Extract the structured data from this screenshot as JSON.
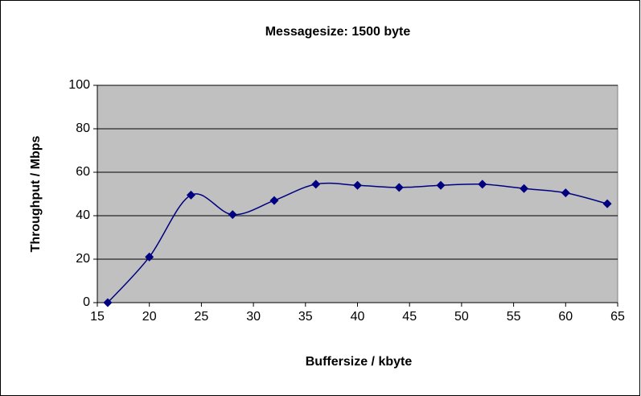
{
  "chart_data": {
    "type": "line",
    "title": "Messagesize: 1500 byte",
    "x_label": "Buffersize / kbyte",
    "y_label": "Throughput / Mbps",
    "x": [
      16,
      20,
      24,
      28,
      32,
      36,
      40,
      44,
      48,
      52,
      56,
      60,
      64
    ],
    "series": [
      {
        "name": "Throughput",
        "color": "#000080",
        "values": [
          0,
          21,
          49.5,
          40.5,
          47,
          54.5,
          54,
          53,
          54,
          54.5,
          52.5,
          50.5,
          45.5
        ]
      }
    ],
    "xlim": [
      15,
      65
    ],
    "xticks": [
      15,
      20,
      25,
      30,
      35,
      40,
      45,
      50,
      55,
      60,
      65
    ],
    "ylim": [
      0,
      100
    ],
    "yticks": [
      0,
      20,
      40,
      60,
      80,
      100
    ],
    "grid": true,
    "smooth": true
  }
}
